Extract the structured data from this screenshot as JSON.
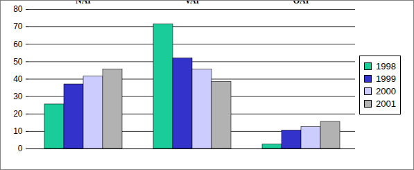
{
  "chart_data": {
    "type": "bar",
    "categories": [
      "NAI",
      "VAI",
      "OAI"
    ],
    "series": [
      {
        "name": "1998",
        "color": "#19cc99",
        "values": [
          25.5,
          71.5,
          2.5
        ]
      },
      {
        "name": "1999",
        "color": "#3333cc",
        "values": [
          37,
          52,
          10.5
        ]
      },
      {
        "name": "2000",
        "color": "#ccccff",
        "values": [
          41.5,
          45.5,
          12.5
        ]
      },
      {
        "name": "2001",
        "color": "#b2b2b2",
        "values": [
          45.5,
          38.5,
          15.5
        ]
      }
    ],
    "ylim": [
      0,
      80
    ],
    "yticks": [
      0,
      10,
      20,
      30,
      40,
      50,
      60,
      70,
      80
    ],
    "grid": true,
    "legend": "right"
  }
}
